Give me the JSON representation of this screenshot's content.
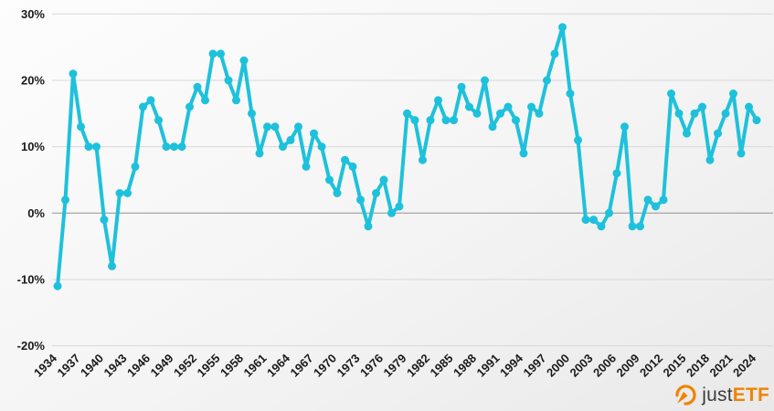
{
  "chart_data": {
    "type": "line",
    "title": "",
    "xlabel": "",
    "ylabel": "",
    "unit": "%",
    "line_color": "#1ec1db",
    "marker": "circle",
    "legend": "none",
    "grid": "horizontal",
    "ylim": [
      -20,
      30
    ],
    "ytick_values": [
      30,
      20,
      10,
      0,
      -10,
      -20
    ],
    "ytick_labels": [
      "30%",
      "20%",
      "10%",
      "0%",
      "-10%",
      "-20%"
    ],
    "xtick_years": [
      1934,
      1937,
      1940,
      1943,
      1946,
      1949,
      1952,
      1955,
      1958,
      1961,
      1964,
      1967,
      1970,
      1973,
      1976,
      1979,
      1982,
      1985,
      1988,
      1991,
      1994,
      1997,
      2000,
      2003,
      2006,
      2009,
      2012,
      2015,
      2018,
      2021,
      2024
    ],
    "x": [
      1934,
      1935,
      1936,
      1937,
      1938,
      1939,
      1940,
      1941,
      1942,
      1943,
      1944,
      1945,
      1946,
      1947,
      1948,
      1949,
      1950,
      1951,
      1952,
      1953,
      1954,
      1955,
      1956,
      1957,
      1958,
      1959,
      1960,
      1961,
      1962,
      1963,
      1964,
      1965,
      1966,
      1967,
      1968,
      1969,
      1970,
      1971,
      1972,
      1973,
      1974,
      1975,
      1976,
      1977,
      1978,
      1979,
      1980,
      1981,
      1982,
      1983,
      1984,
      1985,
      1986,
      1987,
      1988,
      1989,
      1990,
      1991,
      1992,
      1993,
      1994,
      1995,
      1996,
      1997,
      1998,
      1999,
      2000,
      2001,
      2002,
      2003,
      2004,
      2005,
      2006,
      2007,
      2008,
      2009,
      2010,
      2011,
      2012,
      2013,
      2014,
      2015,
      2016,
      2017,
      2018,
      2019,
      2020,
      2021,
      2022,
      2023,
      2024
    ],
    "values": [
      -11,
      2,
      21,
      13,
      10,
      10,
      -1,
      -8,
      3,
      3,
      7,
      16,
      17,
      14,
      10,
      10,
      10,
      16,
      19,
      17,
      24,
      24,
      20,
      17,
      23,
      15,
      9,
      13,
      13,
      10,
      11,
      13,
      7,
      12,
      10,
      5,
      3,
      8,
      7,
      2,
      -2,
      3,
      5,
      0,
      1,
      15,
      14,
      8,
      14,
      17,
      14,
      14,
      19,
      16,
      15,
      20,
      13,
      15,
      16,
      14,
      9,
      16,
      15,
      20,
      24,
      28,
      18,
      11,
      -1,
      -1,
      -2,
      0,
      6,
      13,
      -2,
      -2,
      2,
      1,
      2,
      18,
      15,
      12,
      15,
      16,
      8,
      12,
      15,
      18,
      9,
      16,
      14
    ]
  },
  "theme": {
    "grid_color": "#d8d8d8",
    "zero_line_color": "#919191",
    "tick_label_color": "#1a1a1a",
    "background_top": "#fdfdfd",
    "background_bottom": "#e9e9e9"
  },
  "branding": {
    "logo_just": "just",
    "logo_etf": "ETF",
    "logo_orange": "#f08300",
    "logo_dark": "#3c3c3b",
    "logo_icon": "gauge-icon"
  }
}
